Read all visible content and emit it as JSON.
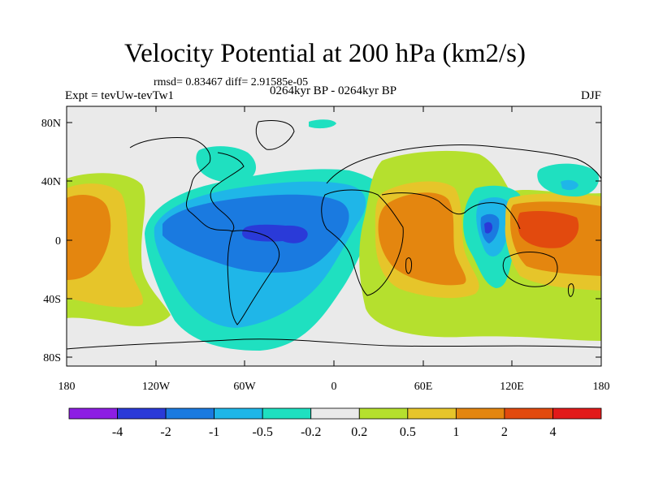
{
  "title": "Velocity Potential at 200 hPa (km2/s)",
  "subtitle": "rmsd= 0.83467 diff= 2.91585e-05",
  "left_label": "Expt = tevUw-tevTw1",
  "center_label": "0264kyr BP - 0264kyr BP",
  "right_label": "DJF",
  "lon_ticks": [
    "180",
    "120W",
    "60W",
    "0",
    "60E",
    "120E",
    "180"
  ],
  "lat_ticks": [
    "80N",
    "40N",
    "0",
    "40S",
    "80S"
  ],
  "colorbar": {
    "labels": [
      "-4",
      "-2",
      "-1",
      "-0.5",
      "-0.2",
      "0.2",
      "0.5",
      "1",
      "2",
      "4"
    ],
    "colors": [
      "#8d1ee3",
      "#2a3ad8",
      "#1a7ae0",
      "#1fb6e8",
      "#1fe0c0",
      "#eaeaea",
      "#b5e02e",
      "#e6c52a",
      "#e4860f",
      "#e24a0e",
      "#e21a1a"
    ]
  },
  "fill_colors": {
    "background": "#eaeaea",
    "cyan": "#1fe0c0",
    "lightblue": "#1fb6e8",
    "blue": "#1a7ae0",
    "darkblue": "#2a3ad8",
    "green": "#b5e02e",
    "yellow": "#e6c52a",
    "orange": "#e4860f",
    "red": "#e24a0e"
  }
}
